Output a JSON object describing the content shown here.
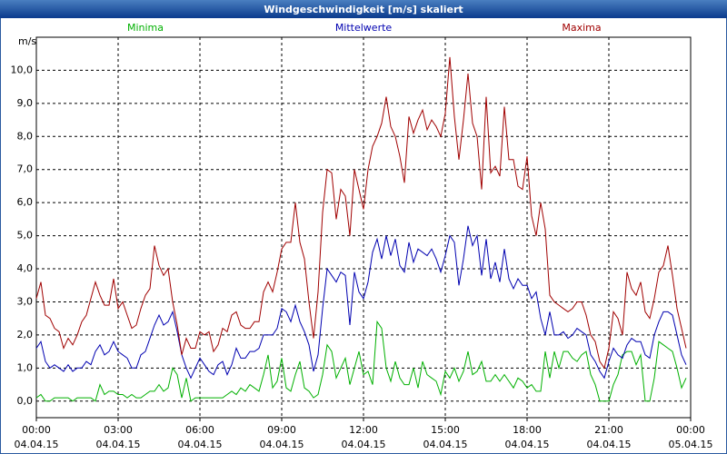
{
  "chart_data": {
    "type": "line",
    "title": "Windgeschwindigkeit [m/s] skaliert",
    "y_unit": "m/s",
    "x": [
      0,
      10,
      20,
      30,
      40,
      50,
      60,
      70,
      80,
      90,
      100,
      110,
      120,
      130,
      140,
      150,
      160,
      170,
      180,
      190,
      200,
      210,
      220,
      230,
      240,
      250,
      260,
      270,
      280,
      290,
      300,
      310,
      320,
      330,
      340,
      350,
      360,
      370,
      380,
      390,
      400,
      410,
      420,
      430,
      440,
      450,
      460,
      470,
      480,
      490,
      500,
      510,
      520,
      530,
      540,
      550,
      560,
      570,
      580,
      590,
      600,
      610,
      620,
      630,
      640,
      650,
      660,
      670,
      680,
      690,
      700,
      710,
      720,
      730,
      740,
      750,
      760,
      770,
      780,
      790,
      800,
      810,
      820,
      830,
      840,
      850,
      860,
      870,
      880,
      890,
      900,
      910,
      920,
      930,
      940,
      950,
      960,
      970,
      980,
      990,
      1000,
      1010,
      1020,
      1030,
      1040,
      1050,
      1060,
      1070,
      1080,
      1090,
      1100,
      1110,
      1120,
      1130,
      1140,
      1150,
      1160,
      1170,
      1180,
      1190,
      1200,
      1210,
      1220,
      1230,
      1240,
      1250,
      1260,
      1270,
      1280,
      1290,
      1300,
      1310,
      1320,
      1330,
      1340,
      1350,
      1360,
      1370,
      1380,
      1390,
      1400,
      1410,
      1420,
      1430
    ],
    "series": [
      {
        "name": "Minima",
        "color": "#00b000",
        "values": [
          0.1,
          0.2,
          0.0,
          0.0,
          0.1,
          0.1,
          0.1,
          0.1,
          0.0,
          0.1,
          0.1,
          0.1,
          0.1,
          0.0,
          0.5,
          0.2,
          0.3,
          0.3,
          0.2,
          0.2,
          0.1,
          0.2,
          0.1,
          0.1,
          0.2,
          0.3,
          0.3,
          0.5,
          0.3,
          0.4,
          1.0,
          0.8,
          0.1,
          0.7,
          0.0,
          0.1,
          0.1,
          0.1,
          0.1,
          0.1,
          0.1,
          0.1,
          0.2,
          0.3,
          0.2,
          0.4,
          0.3,
          0.5,
          0.4,
          0.3,
          0.8,
          1.4,
          0.4,
          0.6,
          1.3,
          0.4,
          0.3,
          0.8,
          1.2,
          0.4,
          0.3,
          0.1,
          0.2,
          0.8,
          1.7,
          1.5,
          0.7,
          1.0,
          1.3,
          0.5,
          1.0,
          1.5,
          0.8,
          0.9,
          0.5,
          2.4,
          2.2,
          1.0,
          0.6,
          1.2,
          0.7,
          0.5,
          0.5,
          1.0,
          0.4,
          1.2,
          0.8,
          0.7,
          0.6,
          0.2,
          0.9,
          0.7,
          1.0,
          0.6,
          0.9,
          1.5,
          0.8,
          0.9,
          1.2,
          0.6,
          0.6,
          0.8,
          0.6,
          0.8,
          0.6,
          0.4,
          0.7,
          0.6,
          0.4,
          0.5,
          0.3,
          0.3,
          1.5,
          0.7,
          1.5,
          1.0,
          1.5,
          1.5,
          1.3,
          1.2,
          1.4,
          1.5,
          0.8,
          0.5,
          0.0,
          0.0,
          0.0,
          0.5,
          0.8,
          1.4,
          1.5,
          1.5,
          1.1,
          1.4,
          0.0,
          0.0,
          0.7,
          1.8,
          1.7,
          1.6,
          1.5,
          1.0,
          0.4,
          0.7
        ]
      },
      {
        "name": "Mittelwerte",
        "color": "#0000b0",
        "values": [
          1.6,
          1.8,
          1.2,
          1.0,
          1.1,
          1.0,
          0.9,
          1.1,
          0.9,
          1.0,
          1.0,
          1.2,
          1.1,
          1.5,
          1.7,
          1.4,
          1.5,
          1.8,
          1.5,
          1.4,
          1.3,
          1.0,
          1.0,
          1.4,
          1.5,
          1.9,
          2.3,
          2.6,
          2.3,
          2.4,
          2.7,
          2.1,
          1.4,
          1.0,
          0.7,
          1.0,
          1.3,
          1.1,
          0.9,
          0.8,
          1.1,
          1.2,
          0.8,
          1.1,
          1.6,
          1.3,
          1.3,
          1.5,
          1.5,
          1.6,
          2.0,
          2.0,
          2.0,
          2.2,
          2.8,
          2.7,
          2.4,
          2.9,
          2.4,
          2.1,
          1.7,
          0.9,
          1.4,
          2.8,
          4.0,
          3.8,
          3.6,
          3.9,
          3.8,
          2.3,
          3.9,
          3.3,
          3.1,
          3.6,
          4.5,
          4.9,
          4.3,
          5.0,
          4.4,
          4.9,
          4.1,
          3.9,
          4.8,
          4.2,
          4.6,
          4.5,
          4.4,
          4.6,
          4.3,
          3.9,
          4.4,
          5.0,
          4.8,
          3.5,
          4.3,
          5.3,
          4.7,
          5.0,
          3.8,
          4.9,
          3.7,
          4.2,
          3.6,
          4.6,
          3.7,
          3.4,
          3.7,
          3.5,
          3.5,
          3.1,
          3.3,
          2.5,
          2.0,
          2.7,
          2.0,
          2.0,
          2.1,
          1.9,
          2.0,
          2.2,
          2.1,
          2.0,
          1.4,
          1.2,
          0.9,
          0.7,
          1.2,
          1.6,
          1.4,
          1.3,
          1.7,
          1.9,
          1.8,
          1.8,
          1.4,
          1.3,
          2.0,
          2.4,
          2.7,
          2.7,
          2.6,
          2.0,
          1.4,
          1.1
        ]
      },
      {
        "name": "Maxima",
        "color": "#a00000",
        "values": [
          3.1,
          3.6,
          2.6,
          2.5,
          2.2,
          2.1,
          1.6,
          1.9,
          1.7,
          2.0,
          2.4,
          2.6,
          3.1,
          3.6,
          3.2,
          2.9,
          2.9,
          3.7,
          2.8,
          3.0,
          2.6,
          2.2,
          2.3,
          2.8,
          3.2,
          3.4,
          4.7,
          4.1,
          3.8,
          4.0,
          3.0,
          2.3,
          1.4,
          1.9,
          1.6,
          1.6,
          2.1,
          2.0,
          2.1,
          1.5,
          1.7,
          2.2,
          2.1,
          2.6,
          2.7,
          2.3,
          2.2,
          2.2,
          2.4,
          2.4,
          3.3,
          3.6,
          3.3,
          3.9,
          4.6,
          4.8,
          4.8,
          6.0,
          4.8,
          4.3,
          3.0,
          1.9,
          3.3,
          5.7,
          7.0,
          6.9,
          5.5,
          6.4,
          6.2,
          5.0,
          7.0,
          6.4,
          5.8,
          7.0,
          7.7,
          8.0,
          8.4,
          9.2,
          8.3,
          8.0,
          7.4,
          6.6,
          8.6,
          8.1,
          8.5,
          8.8,
          8.2,
          8.5,
          8.3,
          8.0,
          8.7,
          10.4,
          8.6,
          7.3,
          8.5,
          9.9,
          8.4,
          8.0,
          6.4,
          9.2,
          6.9,
          7.1,
          6.8,
          8.9,
          7.3,
          7.3,
          6.5,
          6.4,
          7.4,
          5.6,
          5.0,
          6.0,
          5.2,
          3.2,
          3.0,
          2.9,
          2.8,
          2.7,
          2.8,
          3.0,
          3.0,
          2.6,
          2.0,
          1.8,
          1.2,
          1.0,
          1.6,
          2.7,
          2.5,
          2.0,
          3.9,
          3.4,
          3.2,
          3.6,
          2.7,
          2.5,
          3.1,
          3.9,
          4.1,
          4.7,
          3.8,
          2.8,
          2.2,
          1.6
        ]
      }
    ],
    "xlim": [
      0,
      1440
    ],
    "xticks": [
      {
        "value": 0,
        "label": "00:00"
      },
      {
        "value": 180,
        "label": "03:00"
      },
      {
        "value": 360,
        "label": "06:00"
      },
      {
        "value": 540,
        "label": "09:00"
      },
      {
        "value": 720,
        "label": "12:00"
      },
      {
        "value": 900,
        "label": "15:00"
      },
      {
        "value": 1080,
        "label": "18:00"
      },
      {
        "value": 1260,
        "label": "21:00"
      },
      {
        "value": 1440,
        "label": "00:00"
      }
    ],
    "xtick_dates": [
      "04.04.15",
      "04.04.15",
      "04.04.15",
      "04.04.15",
      "04.04.15",
      "04.04.15",
      "04.04.15",
      "04.04.15",
      "05.04.15"
    ],
    "ylim": [
      -0.5,
      11
    ],
    "yticks": [
      {
        "value": 0,
        "label": "0,0"
      },
      {
        "value": 1,
        "label": "1,0"
      },
      {
        "value": 2,
        "label": "2,0"
      },
      {
        "value": 3,
        "label": "3,0"
      },
      {
        "value": 4,
        "label": "4,0"
      },
      {
        "value": 5,
        "label": "5,0"
      },
      {
        "value": 6,
        "label": "6,0"
      },
      {
        "value": 7,
        "label": "7,0"
      },
      {
        "value": 8,
        "label": "8,0"
      },
      {
        "value": 9,
        "label": "9,0"
      },
      {
        "value": 10,
        "label": "10,0"
      }
    ],
    "grid": true
  }
}
